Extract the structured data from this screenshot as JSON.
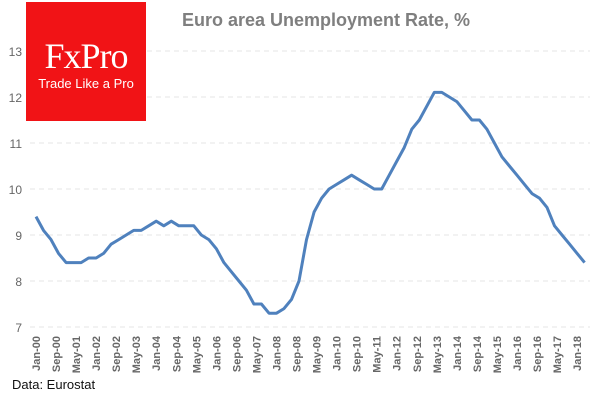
{
  "logo": {
    "brand": "FxPro",
    "tagline": "Trade Like a Pro"
  },
  "source": "Data: Eurostat",
  "colors": {
    "line": "#4f81bd",
    "grid": "#e6e6e6",
    "logo_bg": "#f11316",
    "title": "#7f7f7f"
  },
  "chart_data": {
    "type": "line",
    "title": "Euro area Unemployment Rate, %",
    "xlabel": "",
    "ylabel": "",
    "ylim": [
      7,
      13
    ],
    "yticks": [
      7,
      8,
      9,
      10,
      11,
      12,
      13
    ],
    "grid": true,
    "xtick_labels": [
      "Jan-00",
      "Sep-00",
      "May-01",
      "Jan-02",
      "Sep-02",
      "May-03",
      "Jan-04",
      "Sep-04",
      "May-05",
      "Jan-06",
      "Sep-06",
      "May-07",
      "Jan-08",
      "Sep-08",
      "May-09",
      "Jan-10",
      "Sep-10",
      "May-11",
      "Jan-12",
      "Sep-12",
      "May-13",
      "Jan-14",
      "Sep-14",
      "May-15",
      "Jan-16",
      "Sep-16",
      "May-17",
      "Jan-18"
    ],
    "xtick_step_months": 8,
    "series": [
      {
        "name": "Unemployment rate",
        "sampling": "quarterly from Jan-00",
        "values": [
          9.4,
          9.1,
          8.9,
          8.6,
          8.4,
          8.4,
          8.4,
          8.5,
          8.5,
          8.6,
          8.8,
          8.9,
          9.0,
          9.1,
          9.1,
          9.2,
          9.3,
          9.2,
          9.3,
          9.2,
          9.2,
          9.2,
          9.0,
          8.9,
          8.7,
          8.4,
          8.2,
          8.0,
          7.8,
          7.5,
          7.5,
          7.3,
          7.3,
          7.4,
          7.6,
          8.0,
          8.9,
          9.5,
          9.8,
          10.0,
          10.1,
          10.2,
          10.3,
          10.2,
          10.1,
          10.0,
          10.0,
          10.3,
          10.6,
          10.9,
          11.3,
          11.5,
          11.8,
          12.1,
          12.1,
          12.0,
          11.9,
          11.7,
          11.5,
          11.5,
          11.3,
          11.0,
          10.7,
          10.5,
          10.3,
          10.1,
          9.9,
          9.8,
          9.6,
          9.2,
          9.0,
          8.8,
          8.6,
          8.4
        ]
      }
    ]
  }
}
